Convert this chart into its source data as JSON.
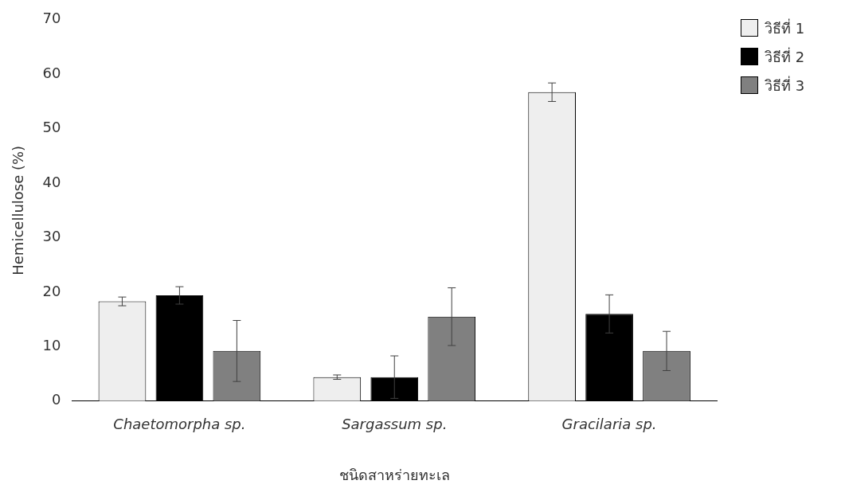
{
  "chart_data": {
    "type": "bar",
    "xlabel": "ชนิดสาหร่ายทะเล",
    "ylabel": "Hemicellulose (%)",
    "categories": [
      "Chaetomorpha sp.",
      "Sargassum sp.",
      "Gracilaria sp."
    ],
    "series": [
      {
        "name": "วิธีที่ 1",
        "color": "#eeeeee",
        "values": [
          18.3,
          4.4,
          56.7
        ],
        "errors": [
          0.8,
          0.4,
          1.7
        ]
      },
      {
        "name": "วิธีที่ 2",
        "color": "#000000",
        "values": [
          19.4,
          4.4,
          16.0
        ],
        "errors": [
          1.6,
          3.9,
          3.5
        ]
      },
      {
        "name": "วิธีที่ 3",
        "color": "#808080",
        "values": [
          9.2,
          15.5,
          9.2
        ],
        "errors": [
          5.6,
          5.3,
          3.6
        ]
      }
    ],
    "ylim": [
      0,
      70
    ],
    "yticks": [
      0,
      10,
      20,
      30,
      40,
      50,
      60,
      70
    ],
    "grid": false,
    "legend": "top right"
  }
}
